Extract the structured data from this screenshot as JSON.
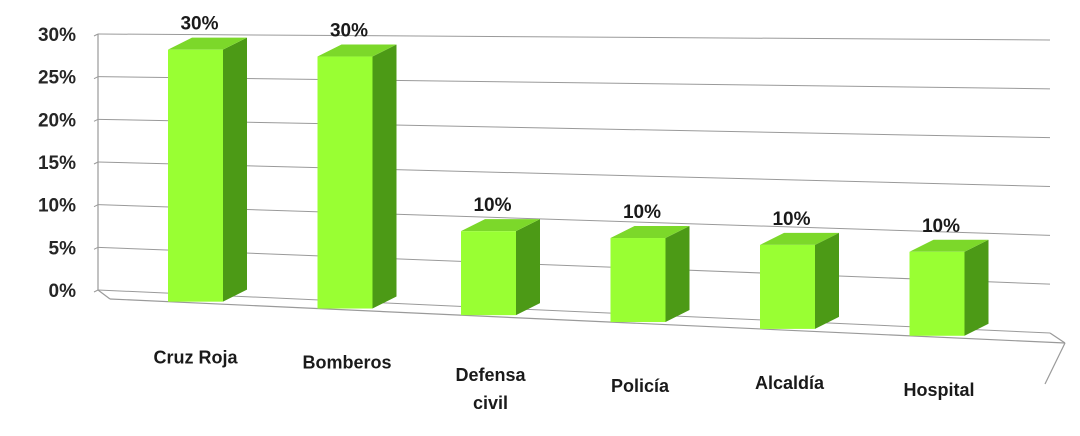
{
  "chart_data": {
    "type": "bar",
    "title": "",
    "xlabel": "",
    "ylabel": "",
    "categories": [
      "Cruz Roja",
      "Bomberos",
      "Defensa civil",
      "Policía",
      "Alcaldía",
      "Hospital"
    ],
    "category_lines": [
      [
        "Cruz Roja"
      ],
      [
        "Bomberos"
      ],
      [
        "Defensa",
        "civil"
      ],
      [
        "Policía"
      ],
      [
        "Alcaldía"
      ],
      [
        "Hospital"
      ]
    ],
    "values": [
      30,
      30,
      10,
      10,
      10,
      10
    ],
    "data_labels": [
      "30%",
      "30%",
      "10%",
      "10%",
      "10%",
      "10%"
    ],
    "ylim": [
      0,
      30
    ],
    "yticks": [
      0,
      5,
      10,
      15,
      20,
      25,
      30
    ],
    "ytick_labels": [
      "0%",
      "5%",
      "10%",
      "15%",
      "20%",
      "25%",
      "30%"
    ],
    "grid": true,
    "legend": "none",
    "style": "3d-column",
    "colors": {
      "front": "#99FF33",
      "side": "#4C9A16",
      "top": "#7CD82A",
      "grid": "#9a9a9a"
    }
  }
}
